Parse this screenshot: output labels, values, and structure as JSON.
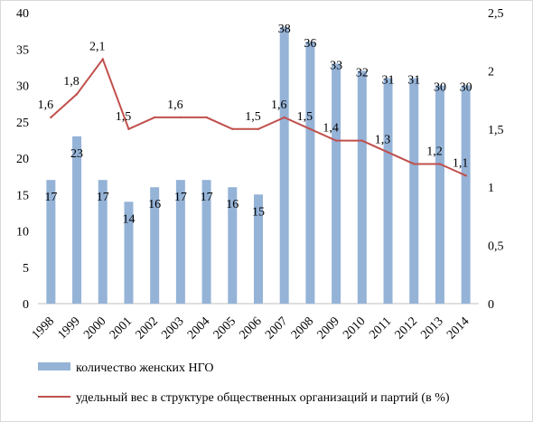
{
  "chart_data": {
    "type": "bar",
    "categories": [
      "1998",
      "1999",
      "2000",
      "2001",
      "2002",
      "2003",
      "2004",
      "2005",
      "2006",
      "2007",
      "2008",
      "2009",
      "2010",
      "2011",
      "2012",
      "2013",
      "2014"
    ],
    "series": [
      {
        "name": "количество женских НГО",
        "type": "bar",
        "axis": "left",
        "values": [
          17,
          23,
          17,
          14,
          16,
          17,
          17,
          16,
          15,
          38,
          36,
          33,
          32,
          31,
          31,
          30,
          30
        ],
        "labels": [
          "17",
          "23",
          "17",
          "14",
          "16",
          "17",
          "17",
          "16",
          "15",
          "38",
          "36",
          "33",
          "32",
          "31",
          "31",
          "30",
          "30"
        ]
      },
      {
        "name": "удельный вес в структуре общественных организаций и партий (в %)",
        "type": "line",
        "axis": "right",
        "values": [
          1.6,
          1.8,
          2.1,
          1.5,
          1.6,
          1.6,
          1.6,
          1.5,
          1.5,
          1.6,
          1.5,
          1.4,
          1.4,
          1.3,
          1.2,
          1.2,
          1.1
        ],
        "labels": [
          "1,6",
          "1,8",
          "2,1",
          "1,5",
          "",
          "1,6",
          "",
          "",
          "1,5",
          "1,6",
          "1,5",
          "1,4",
          "",
          "1,3",
          "",
          "1,2",
          "1,1"
        ]
      }
    ],
    "y_left": {
      "ylim": [
        0,
        40
      ],
      "ticks": [
        "0",
        "5",
        "10",
        "15",
        "20",
        "25",
        "30",
        "35",
        "40"
      ]
    },
    "y_right": {
      "ylim": [
        0,
        2.5
      ],
      "ticks": [
        "0",
        "0,5",
        "1",
        "1,5",
        "2",
        "2,5"
      ]
    },
    "grid": false,
    "legend": "bottom-left",
    "colors": {
      "bar": "#95b3d7",
      "line": "#c0504d"
    }
  }
}
